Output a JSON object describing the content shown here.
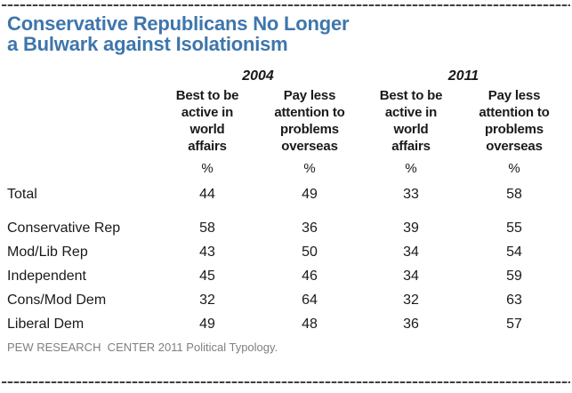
{
  "title": "Conservative Republicans No Longer\na Bulwark against Isolationism",
  "table": {
    "year_groups": [
      {
        "label": "2004"
      },
      {
        "label": "2011"
      }
    ],
    "column_headers": [
      "Best to be\nactive in\nworld\naffairs",
      "Pay less\nattention to\nproblems\noverseas",
      "Best to be\nactive in\nworld\naffairs",
      "Pay less\nattention to\nproblems\noverseas"
    ],
    "percent_symbol": "%",
    "rows": [
      {
        "label": "Total",
        "values": [
          "44",
          "49",
          "33",
          "58"
        ]
      },
      {
        "label": "Conservative Rep",
        "values": [
          "58",
          "36",
          "39",
          "55"
        ]
      },
      {
        "label": "Mod/Lib Rep",
        "values": [
          "43",
          "50",
          "34",
          "54"
        ]
      },
      {
        "label": "Independent",
        "values": [
          "45",
          "46",
          "34",
          "59"
        ]
      },
      {
        "label": "Cons/Mod Dem",
        "values": [
          "32",
          "64",
          "32",
          "63"
        ]
      },
      {
        "label": "Liberal Dem",
        "values": [
          "49",
          "48",
          "36",
          "57"
        ]
      }
    ]
  },
  "footer": "PEW RESEARCH  CENTER 2011 Political Typology.",
  "colors": {
    "title_blue": "#3e76ac",
    "body_text": "#1a1a1a",
    "footer_gray": "#7f7f7f",
    "rule_dark": "#3f3f3f",
    "rule_light": "#c9c9c9",
    "background": "#ffffff"
  },
  "chart_data": {
    "type": "table",
    "title": "Conservative Republicans No Longer a Bulwark against Isolationism",
    "unit": "%",
    "column_groups": [
      "2004",
      "2011"
    ],
    "columns": [
      "2004 Best to be active in world affairs",
      "2004 Pay less attention to problems overseas",
      "2011 Best to be active in world affairs",
      "2011 Pay less attention to problems overseas"
    ],
    "row_labels": [
      "Total",
      "Conservative Rep",
      "Mod/Lib Rep",
      "Independent",
      "Cons/Mod Dem",
      "Liberal Dem"
    ],
    "values": [
      [
        44,
        49,
        33,
        58
      ],
      [
        58,
        36,
        39,
        55
      ],
      [
        43,
        50,
        34,
        54
      ],
      [
        45,
        46,
        34,
        59
      ],
      [
        32,
        64,
        32,
        63
      ],
      [
        49,
        48,
        36,
        57
      ]
    ],
    "source": "PEW RESEARCH CENTER 2011 Political Typology."
  }
}
